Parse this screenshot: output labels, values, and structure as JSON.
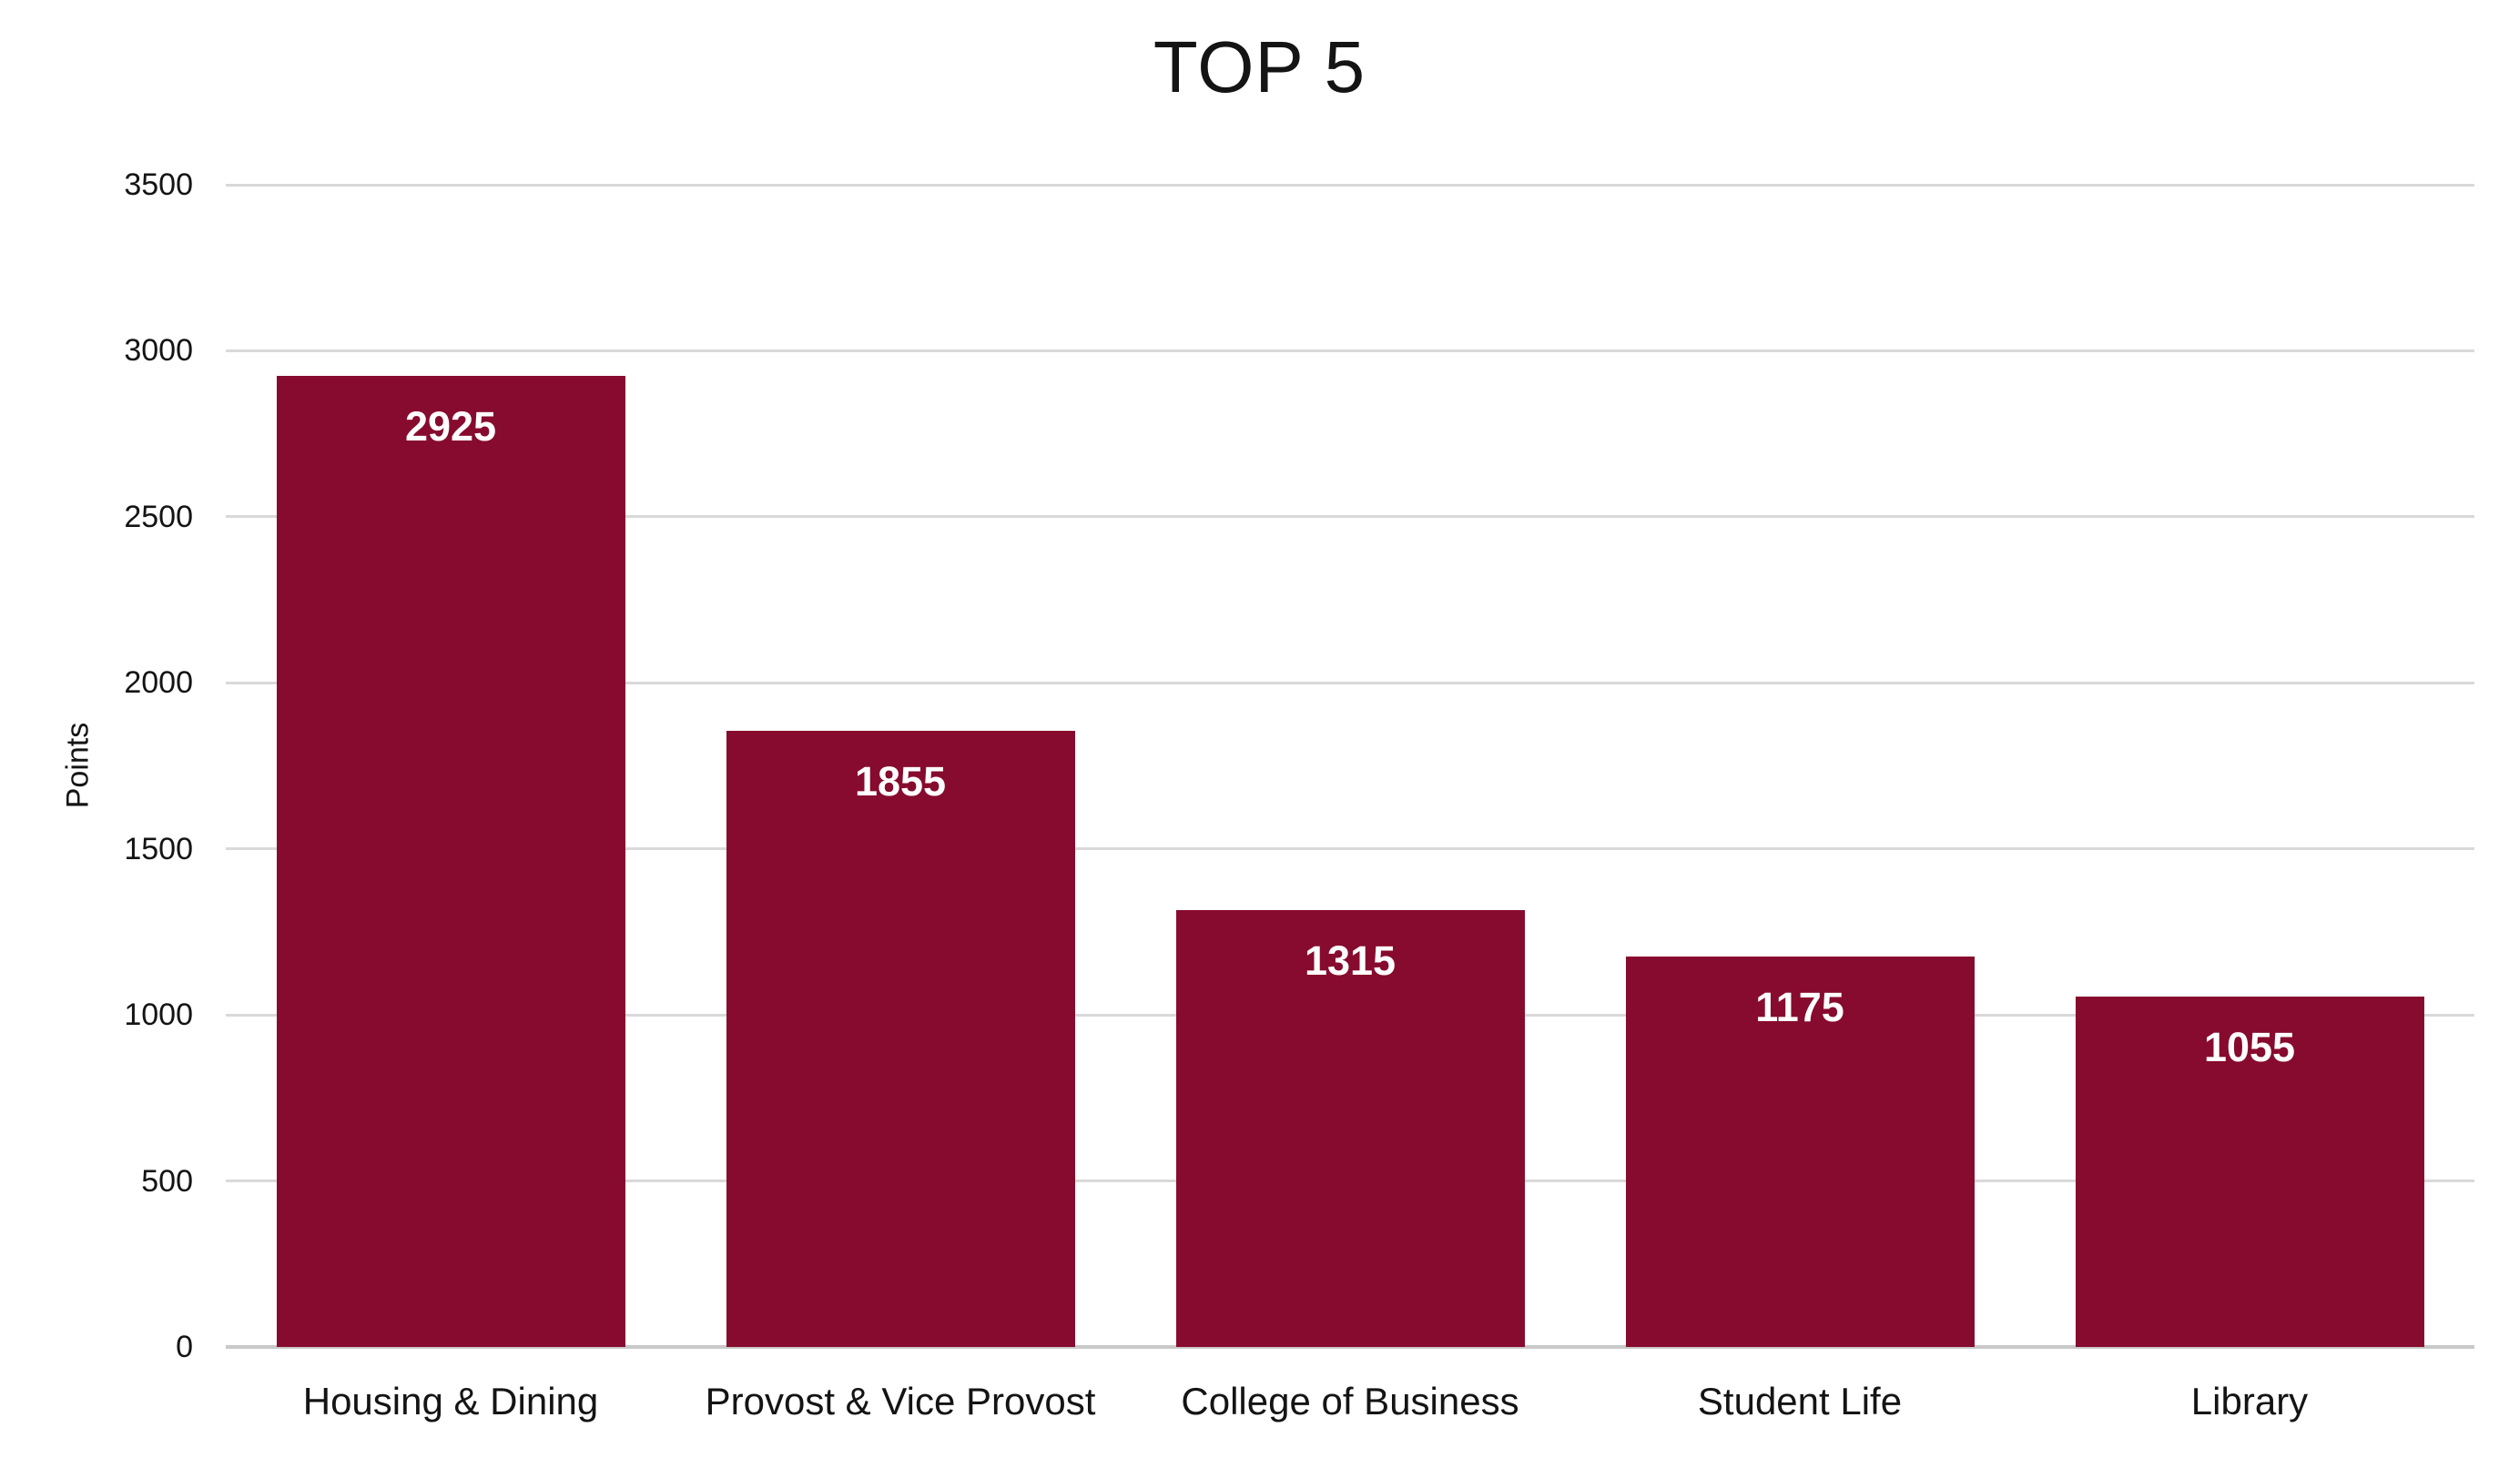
{
  "chart_data": {
    "type": "bar",
    "title": "TOP 5",
    "xlabel": "",
    "ylabel": "Points",
    "categories": [
      "Housing & Dining",
      "Provost & Vice Provost",
      "College of Business",
      "Student Life",
      "Library"
    ],
    "values": [
      2925,
      1855,
      1315,
      1175,
      1055
    ],
    "ylim": [
      0,
      3500
    ],
    "yticks": [
      0,
      500,
      1000,
      1500,
      2000,
      2500,
      3000,
      3500
    ],
    "grid": true,
    "legend": false,
    "value_labels_inside_bars": true,
    "colors": {
      "bar": "#870B2E",
      "value_label": "#FFFFFF",
      "gridline": "#D9D9D9",
      "axis_line": "#C9C9C9",
      "text": "#141414"
    }
  }
}
